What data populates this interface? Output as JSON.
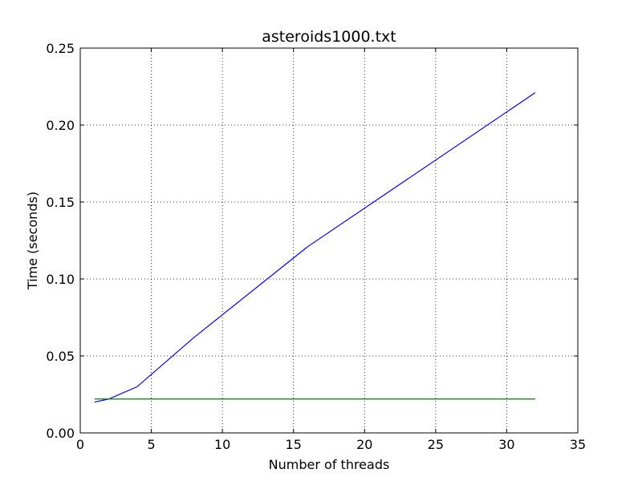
{
  "chart_data": {
    "type": "line",
    "title": "asteroids1000.txt",
    "xlabel": "Number of threads",
    "ylabel": "Time (seconds)",
    "xlim": [
      0,
      35
    ],
    "ylim": [
      0,
      0.25
    ],
    "xticks": [
      0,
      5,
      10,
      15,
      20,
      25,
      30,
      35
    ],
    "xtick_labels": [
      "0",
      "5",
      "10",
      "15",
      "20",
      "25",
      "30",
      "35"
    ],
    "yticks": [
      0,
      0.05,
      0.1,
      0.15,
      0.2,
      0.25
    ],
    "ytick_labels": [
      "0.00",
      "0.05",
      "0.10",
      "0.15",
      "0.20",
      "0.25"
    ],
    "grid": true,
    "series": [
      {
        "color": "#0000ff",
        "x": [
          1,
          2,
          4,
          8,
          16,
          32
        ],
        "y": [
          0.02,
          0.022,
          0.03,
          0.062,
          0.121,
          0.221
        ]
      },
      {
        "color": "#008000",
        "x": [
          1,
          2,
          4,
          8,
          16,
          32
        ],
        "y": [
          0.022,
          0.022,
          0.022,
          0.022,
          0.022,
          0.022
        ]
      }
    ]
  }
}
